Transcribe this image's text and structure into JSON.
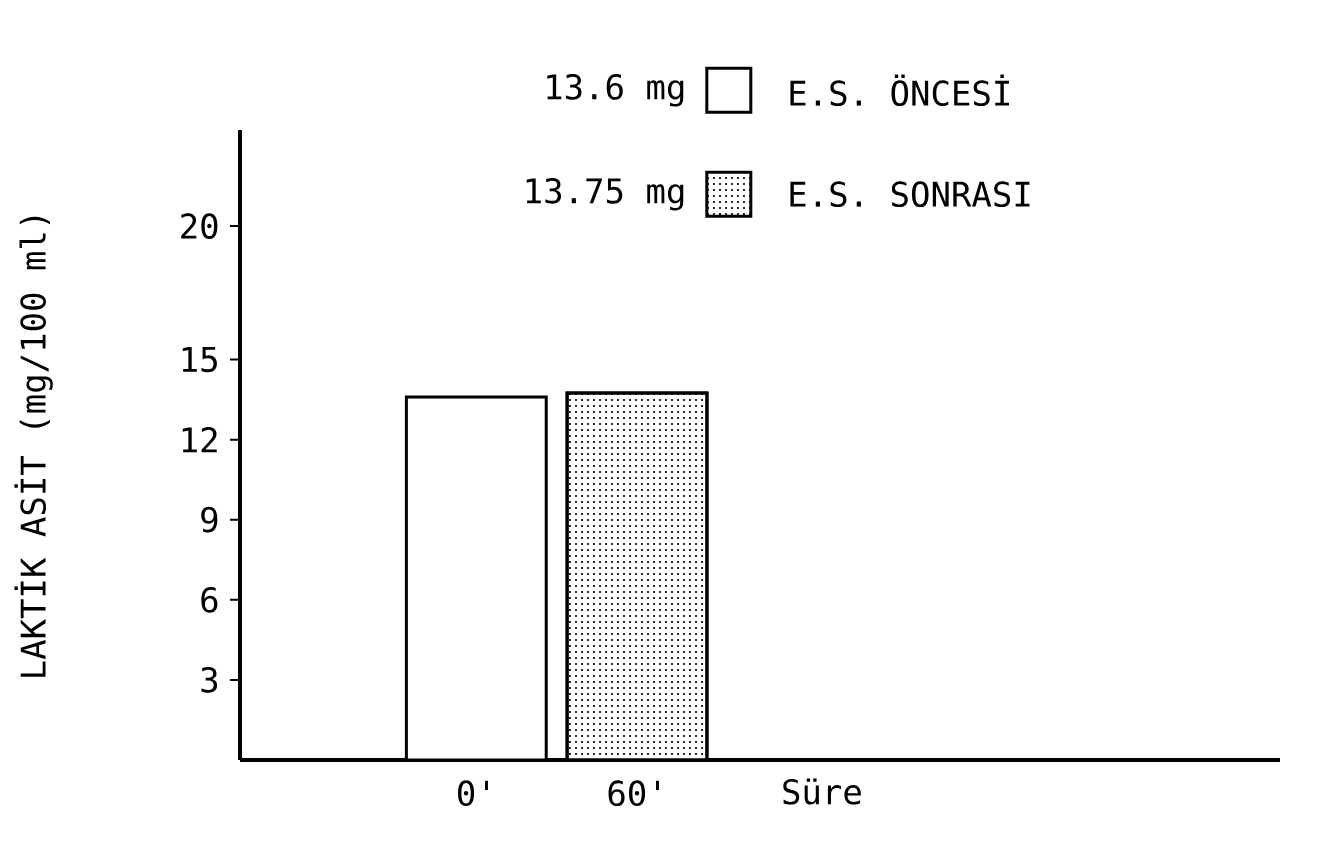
{
  "chart_data": {
    "type": "bar",
    "ylabel": "LAKTİK ASİT (mg/100 ml)",
    "xlabel": "Süre",
    "categories": [
      "0'",
      "60'"
    ],
    "series": [
      {
        "name": "E.S. ÖNCESİ",
        "color": "#ffffff",
        "values": [
          13.6,
          null
        ]
      },
      {
        "name": "E.S. SONRASI",
        "color": "#ffffff",
        "values": [
          null,
          13.75
        ]
      }
    ],
    "annotations": [
      "13.6 mg",
      "13.75 mg"
    ],
    "ylim": [
      0,
      23.6
    ],
    "yticks": [
      3,
      6,
      9,
      12,
      15,
      20
    ],
    "legend": "top right",
    "grid": false
  }
}
